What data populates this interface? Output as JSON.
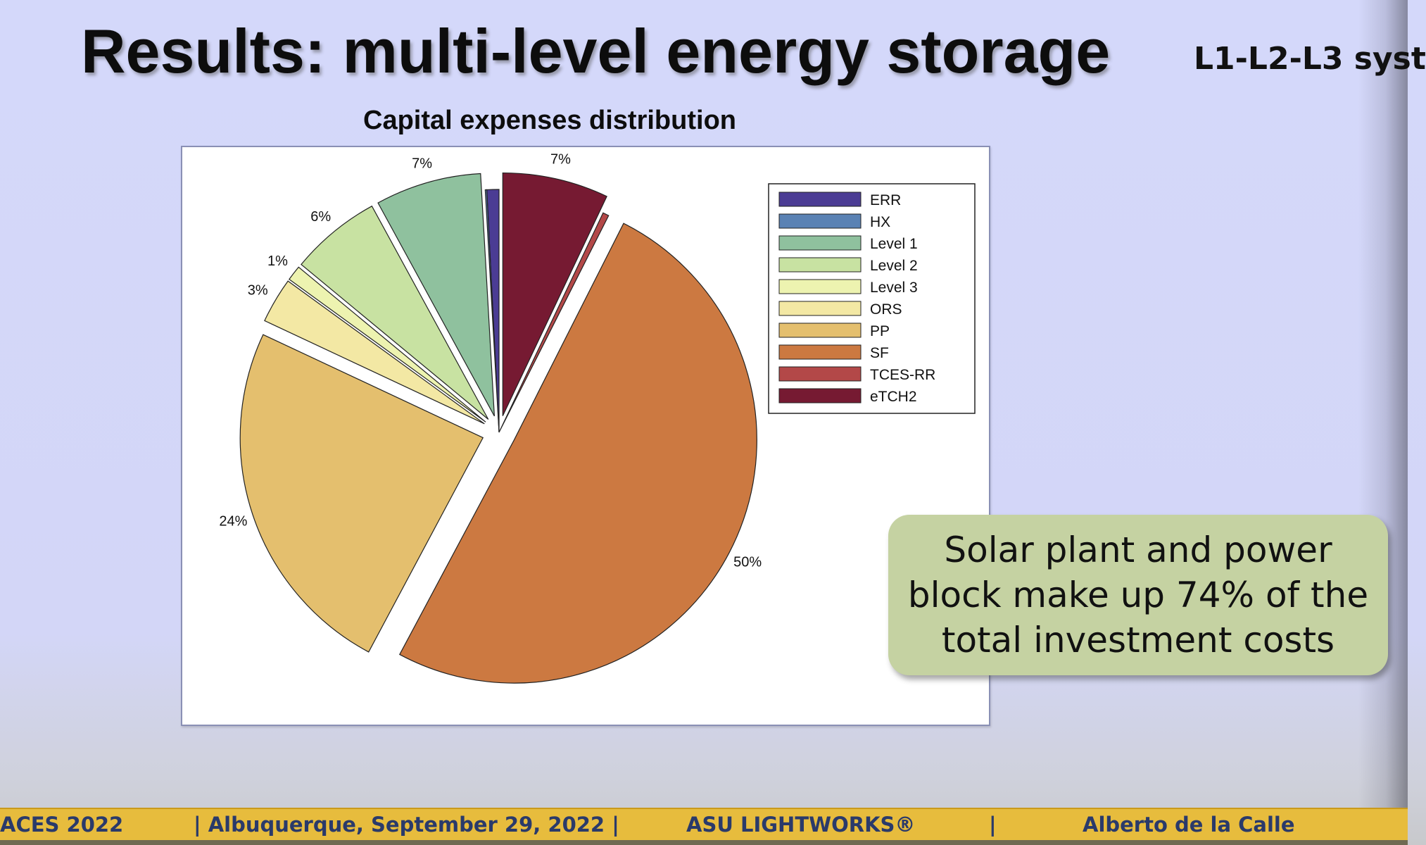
{
  "slide": {
    "title": "Results: multi-level energy storage",
    "subtitle": "L1-L2-L3 syst",
    "callout": "Solar plant and power block make up 74% of the total investment costs"
  },
  "footer": {
    "conference": "ACES 2022",
    "location": "| Albuquerque, September 29, 2022 |",
    "organization": "ASU LIGHTWORKS®",
    "separator": "|",
    "author": "Alberto de la Calle"
  },
  "chart_data": {
    "type": "pie",
    "title": "Capital expenses distribution",
    "legend_position": "top-right",
    "slices": [
      {
        "name": "ERR",
        "value": 0.8,
        "label": "",
        "color": "#4b3c94",
        "exploded": false
      },
      {
        "name": "HX",
        "value": 0.1,
        "label": "",
        "color": "#5a82b4",
        "exploded": false
      },
      {
        "name": "Level 1",
        "value": 7,
        "label": "7%",
        "color": "#8fc19e",
        "exploded": true
      },
      {
        "name": "Level 2",
        "value": 6,
        "label": "6%",
        "color": "#c8e2a2",
        "exploded": true
      },
      {
        "name": "Level 3",
        "value": 1,
        "label": "1%",
        "color": "#edf3b0",
        "exploded": true
      },
      {
        "name": "ORS",
        "value": 3,
        "label": "3%",
        "color": "#f3e8a4",
        "exploded": true
      },
      {
        "name": "PP",
        "value": 24,
        "label": "24%",
        "color": "#e4bf6e",
        "exploded": true
      },
      {
        "name": "SF",
        "value": 50,
        "label": "50%",
        "color": "#cc7941",
        "exploded": true
      },
      {
        "name": "TCES-RR",
        "value": 0.4,
        "label": "",
        "color": "#b34848",
        "exploded": false
      },
      {
        "name": "eTCH2",
        "value": 7,
        "label": "7%",
        "color": "#761a32",
        "exploded": true
      }
    ]
  }
}
